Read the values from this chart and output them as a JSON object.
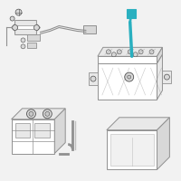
{
  "bg_color": "#f2f2f2",
  "highlight_color": "#2ab0c0",
  "line_color": "#909090",
  "dark_line": "#505050",
  "fill_white": "#ffffff",
  "fill_light": "#e8e8e8",
  "fill_mid": "#d8d8d8",
  "fill_dark": "#c8c8c8"
}
